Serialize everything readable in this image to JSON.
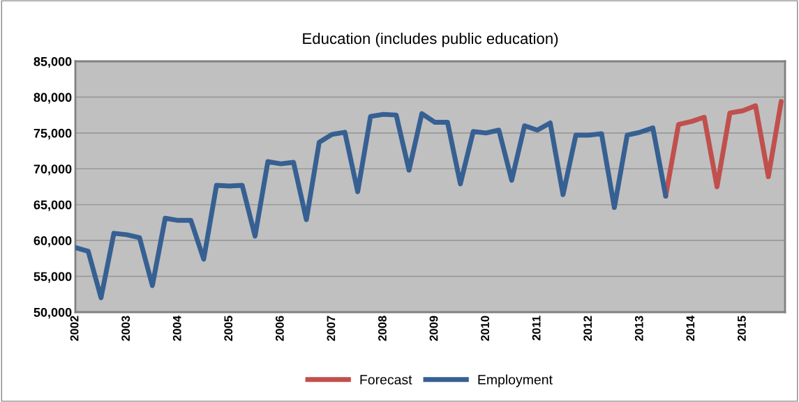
{
  "chart_data": {
    "type": "line",
    "title": "Education (includes public education)",
    "categories": [
      "2002",
      null,
      null,
      null,
      "2003",
      null,
      null,
      null,
      "2004",
      null,
      null,
      null,
      "2005",
      null,
      null,
      null,
      "2006",
      null,
      null,
      null,
      "2007",
      null,
      null,
      null,
      "2008",
      null,
      null,
      null,
      "2009",
      null,
      null,
      null,
      "2010",
      null,
      null,
      null,
      "2011",
      null,
      null,
      null,
      "2012",
      null,
      null,
      null,
      "2013",
      null,
      null,
      null,
      "2014",
      null,
      null,
      null,
      "2015",
      null,
      null,
      null
    ],
    "series": [
      {
        "name": "Forecast",
        "color": "#c0504d",
        "values": [
          null,
          null,
          null,
          null,
          null,
          null,
          null,
          null,
          null,
          null,
          null,
          null,
          null,
          null,
          null,
          null,
          null,
          null,
          null,
          null,
          null,
          null,
          null,
          null,
          null,
          null,
          null,
          null,
          null,
          null,
          null,
          null,
          null,
          null,
          null,
          null,
          null,
          null,
          null,
          null,
          null,
          null,
          null,
          null,
          null,
          null,
          66200,
          76200,
          76600,
          77200,
          67500,
          77800,
          78100,
          78800,
          68900,
          79400
        ]
      },
      {
        "name": "Employment",
        "color": "#376092",
        "values": [
          59000,
          58500,
          52000,
          61000,
          60800,
          60400,
          53700,
          63100,
          62800,
          62800,
          57400,
          67700,
          67600,
          67700,
          60600,
          71000,
          70700,
          70900,
          62900,
          73700,
          74800,
          75100,
          66800,
          77300,
          77600,
          77500,
          69800,
          77700,
          76500,
          76500,
          67900,
          75200,
          75000,
          75400,
          68400,
          76000,
          75400,
          76400,
          66400,
          74700,
          74700,
          74900,
          64600,
          74700,
          75100,
          75700,
          66200,
          null,
          null,
          null,
          null,
          null,
          null,
          null,
          null,
          null
        ]
      }
    ],
    "ylim": [
      50000,
      85000
    ],
    "yticks": [
      {
        "value": 50000,
        "label": "50,000"
      },
      {
        "value": 55000,
        "label": "55,000"
      },
      {
        "value": 60000,
        "label": "60,000"
      },
      {
        "value": 65000,
        "label": "65,000"
      },
      {
        "value": 70000,
        "label": "70,000"
      },
      {
        "value": 75000,
        "label": "75,000"
      },
      {
        "value": 80000,
        "label": "80,000"
      },
      {
        "value": 85000,
        "label": "85,000"
      }
    ],
    "grid": "y",
    "legend": "bottom",
    "marker": "none",
    "line_style": "solid"
  }
}
